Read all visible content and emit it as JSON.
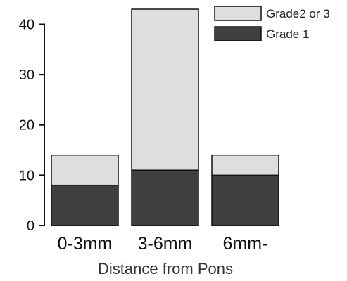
{
  "chart_data": {
    "type": "bar",
    "stacked": true,
    "categories": [
      "0-3mm",
      "3-6mm",
      "6mm-"
    ],
    "series": [
      {
        "name": "Grade 1",
        "values": [
          8,
          11,
          10
        ],
        "color": "#3f3f3f"
      },
      {
        "name": "Grade2 or 3",
        "values": [
          6,
          32,
          4
        ],
        "color": "#dedede"
      }
    ],
    "title": "",
    "xlabel": "Distance from Pons",
    "ylabel": "",
    "ylim": [
      0,
      43
    ],
    "yticks": [
      0,
      10,
      20,
      30,
      40
    ],
    "grid": false,
    "legend": {
      "placement": "top-right",
      "order": [
        "Grade2 or 3",
        "Grade 1"
      ]
    }
  }
}
